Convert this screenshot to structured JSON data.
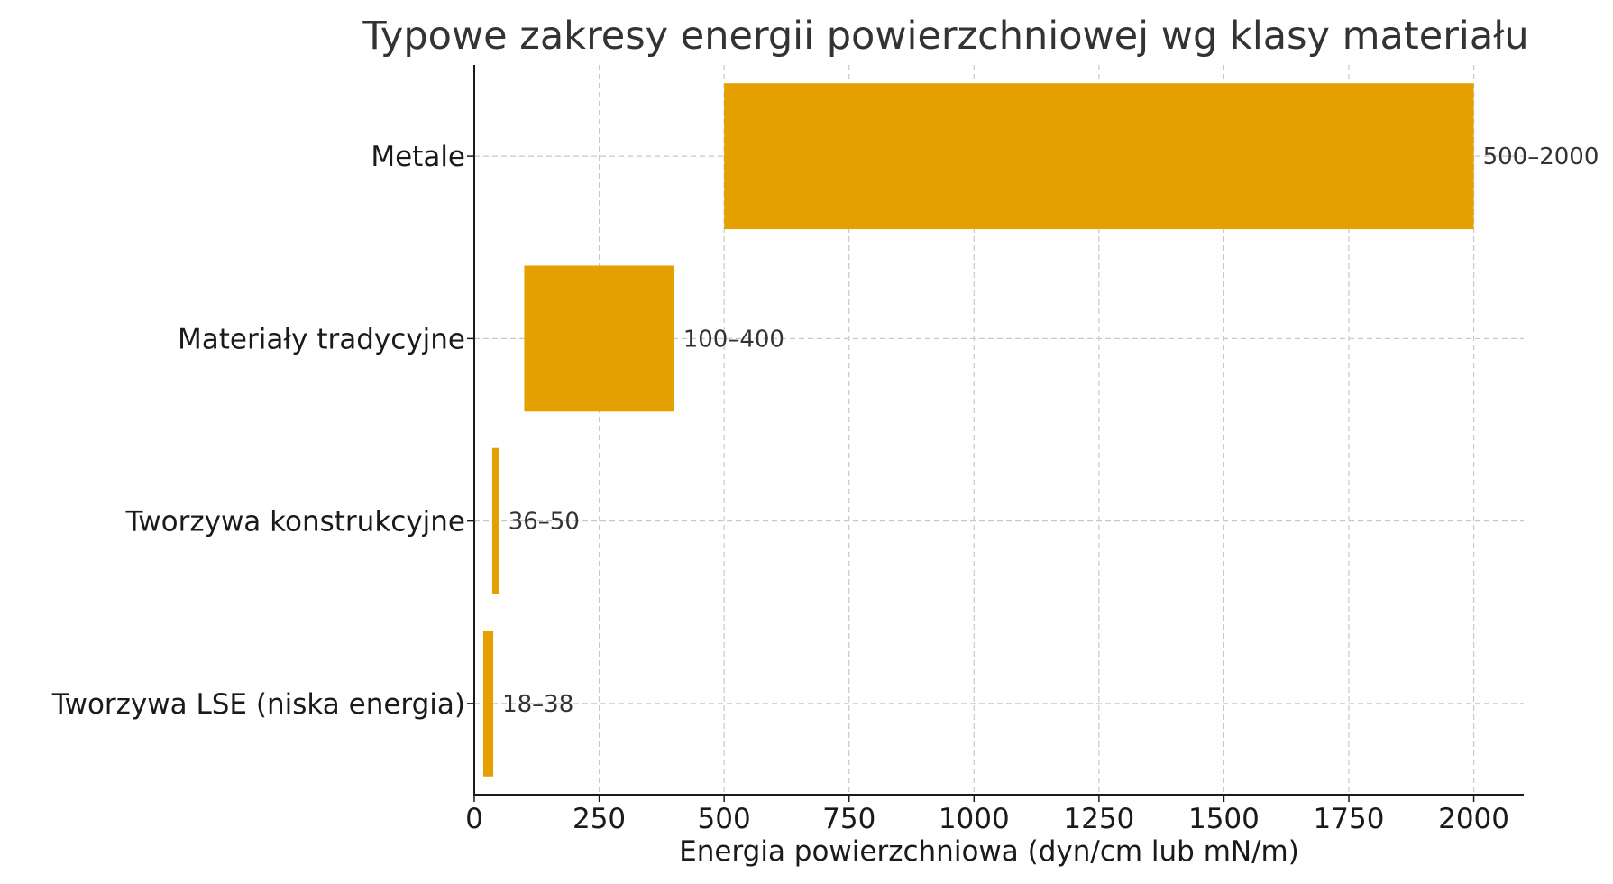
{
  "chart_data": {
    "type": "bar",
    "orientation": "horizontal",
    "title": "Typowe zakresy energii powierzchniowej wg klasy materiału",
    "xlabel": "Energia powierzchniowa (dyn/cm lub mN/m)",
    "ylabel": "",
    "xlim": [
      0,
      2100
    ],
    "xticks": [
      0,
      250,
      500,
      750,
      1000,
      1250,
      1500,
      1750,
      2000
    ],
    "grid": true,
    "bar_color": "#E69F00",
    "categories": [
      "Metale",
      "Materiały tradycyjne",
      "Tworzywa konstrukcyjne",
      "Tworzywa LSE (niska energia)"
    ],
    "ranges": [
      {
        "low": 500,
        "high": 2000,
        "label": "500–2000"
      },
      {
        "low": 100,
        "high": 400,
        "label": "100–400"
      },
      {
        "low": 36,
        "high": 50,
        "label": "36–50"
      },
      {
        "low": 18,
        "high": 38,
        "label": "18–38"
      }
    ]
  }
}
